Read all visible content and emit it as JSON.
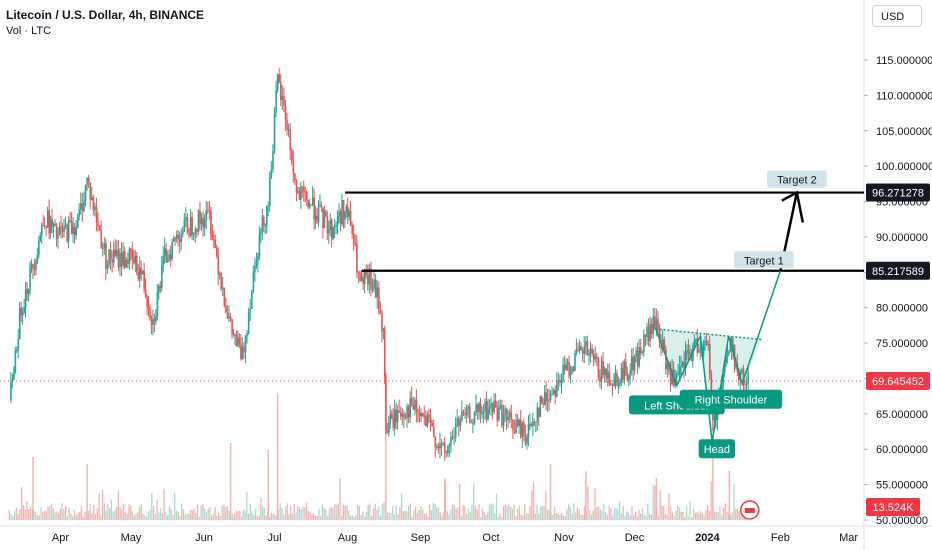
{
  "header": {
    "title": "Litecoin / U.S. Dollar, 4h, BINANCE",
    "volume_label": "Vol · LTC",
    "currency_button": "USD"
  },
  "colors": {
    "up": "#26a69a",
    "down": "#ef5350",
    "pattern": "#089981",
    "line": "#000000",
    "axis_text": "#131722",
    "price_dotted": "#f23645"
  },
  "chart_data": {
    "type": "candlestick",
    "symbol": "LTCUSD",
    "timeframe": "4h",
    "exchange": "BINANCE",
    "y_axis": {
      "ylim": [
        50,
        120
      ],
      "ticks": [
        "115.000000",
        "110.000000",
        "105.000000",
        "100.000000",
        "95.000000",
        "90.000000",
        "85.000000",
        "80.000000",
        "75.000000",
        "70.000000",
        "65.000000",
        "60.000000",
        "55.000000",
        "50.000000"
      ],
      "tick_values": [
        115,
        110,
        105,
        100,
        95,
        90,
        85,
        80,
        75,
        70,
        65,
        60,
        55,
        50
      ]
    },
    "x_axis": {
      "ticks": [
        "Apr",
        "May",
        "Jun",
        "Jul",
        "Aug",
        "Sep",
        "Oct",
        "Nov",
        "Dec",
        "2024",
        "Feb",
        "Mar"
      ],
      "tick_dates": [
        "2023-04-01",
        "2023-05-01",
        "2023-06-01",
        "2023-07-01",
        "2023-08-01",
        "2023-09-01",
        "2023-10-01",
        "2023-11-01",
        "2023-12-01",
        "2024-01-01",
        "2024-02-01",
        "2024-03-01"
      ],
      "range": [
        "2023-03-08",
        "2024-03-05"
      ]
    },
    "price_path": [
      {
        "date": "2023-03-10",
        "price": 67
      },
      {
        "date": "2023-03-15",
        "price": 80
      },
      {
        "date": "2023-03-20",
        "price": 86
      },
      {
        "date": "2023-03-25",
        "price": 93
      },
      {
        "date": "2023-03-30",
        "price": 90
      },
      {
        "date": "2023-04-08",
        "price": 92
      },
      {
        "date": "2023-04-12",
        "price": 98
      },
      {
        "date": "2023-04-20",
        "price": 87
      },
      {
        "date": "2023-04-30",
        "price": 87
      },
      {
        "date": "2023-05-05",
        "price": 85
      },
      {
        "date": "2023-05-10",
        "price": 78
      },
      {
        "date": "2023-05-15",
        "price": 87
      },
      {
        "date": "2023-05-22",
        "price": 91
      },
      {
        "date": "2023-05-28",
        "price": 92
      },
      {
        "date": "2023-06-03",
        "price": 93
      },
      {
        "date": "2023-06-08",
        "price": 84
      },
      {
        "date": "2023-06-12",
        "price": 77
      },
      {
        "date": "2023-06-17",
        "price": 73
      },
      {
        "date": "2023-06-23",
        "price": 88
      },
      {
        "date": "2023-06-28",
        "price": 95
      },
      {
        "date": "2023-07-02",
        "price": 112
      },
      {
        "date": "2023-07-06",
        "price": 106
      },
      {
        "date": "2023-07-10",
        "price": 96
      },
      {
        "date": "2023-07-15",
        "price": 95
      },
      {
        "date": "2023-07-20",
        "price": 93
      },
      {
        "date": "2023-07-25",
        "price": 91
      },
      {
        "date": "2023-07-30",
        "price": 94
      },
      {
        "date": "2023-08-02",
        "price": 92
      },
      {
        "date": "2023-08-06",
        "price": 83
      },
      {
        "date": "2023-08-10",
        "price": 84
      },
      {
        "date": "2023-08-14",
        "price": 81
      },
      {
        "date": "2023-08-16",
        "price": 76
      },
      {
        "date": "2023-08-17",
        "price": 63
      },
      {
        "date": "2023-08-22",
        "price": 65
      },
      {
        "date": "2023-08-28",
        "price": 66
      },
      {
        "date": "2023-09-05",
        "price": 63
      },
      {
        "date": "2023-09-11",
        "price": 59
      },
      {
        "date": "2023-09-17",
        "price": 64
      },
      {
        "date": "2023-09-25",
        "price": 65
      },
      {
        "date": "2023-10-02",
        "price": 66
      },
      {
        "date": "2023-10-08",
        "price": 64
      },
      {
        "date": "2023-10-16",
        "price": 62
      },
      {
        "date": "2023-10-21",
        "price": 66
      },
      {
        "date": "2023-10-26",
        "price": 68
      },
      {
        "date": "2023-11-01",
        "price": 71
      },
      {
        "date": "2023-11-06",
        "price": 73
      },
      {
        "date": "2023-11-10",
        "price": 74
      },
      {
        "date": "2023-11-16",
        "price": 71
      },
      {
        "date": "2023-11-22",
        "price": 70
      },
      {
        "date": "2023-11-27",
        "price": 71
      },
      {
        "date": "2023-12-02",
        "price": 73
      },
      {
        "date": "2023-12-06",
        "price": 76
      },
      {
        "date": "2023-12-10",
        "price": 78
      },
      {
        "date": "2023-12-14",
        "price": 72
      },
      {
        "date": "2023-12-18",
        "price": 69
      },
      {
        "date": "2023-12-23",
        "price": 73
      },
      {
        "date": "2023-12-28",
        "price": 75
      },
      {
        "date": "2024-01-01",
        "price": 74
      },
      {
        "date": "2024-01-03",
        "price": 64
      },
      {
        "date": "2024-01-05",
        "price": 66
      },
      {
        "date": "2024-01-08",
        "price": 72
      },
      {
        "date": "2024-01-11",
        "price": 75
      },
      {
        "date": "2024-01-14",
        "price": 70
      },
      {
        "date": "2024-01-18",
        "price": 69.6
      }
    ],
    "horizontal_lines": [
      {
        "label": "96.271278",
        "value": 96.271278,
        "start": "2023-07-31"
      },
      {
        "label": "85.217589",
        "value": 85.217589,
        "start": "2023-08-07"
      }
    ],
    "current_price": {
      "label": "69.645452",
      "value": 69.645452
    },
    "pattern": {
      "name": "inverse head and shoulders",
      "points": [
        {
          "date": "2023-12-10",
          "price": 77
        },
        {
          "date": "2023-12-19",
          "price": 69
        },
        {
          "date": "2023-12-29",
          "price": 76
        },
        {
          "date": "2024-01-03",
          "price": 61
        },
        {
          "date": "2024-01-10",
          "price": 76
        },
        {
          "date": "2024-01-16",
          "price": 69
        }
      ],
      "neckline": [
        {
          "date": "2023-12-10",
          "price": 77
        },
        {
          "date": "2024-01-24",
          "price": 75.5
        }
      ],
      "labels": [
        {
          "text": "Left Shoulder",
          "date": "2023-12-19",
          "price": 66.2
        },
        {
          "text": "Head",
          "date": "2024-01-05",
          "price": 60.0
        },
        {
          "text": "Right Shoulder",
          "date": "2024-01-11",
          "price": 67.0
        }
      ]
    },
    "projection": [
      {
        "date": "2024-01-16",
        "price": 69.5
      },
      {
        "date": "2024-02-01",
        "price": 85.217589
      },
      {
        "date": "2024-02-08",
        "price": 96.271278
      }
    ],
    "targets": [
      {
        "text": "Target 1",
        "date": "2024-01-25",
        "price": 86.7
      },
      {
        "text": "Target 2",
        "date": "2024-02-08",
        "price": 98.1
      }
    ],
    "volume": {
      "label": "13.524K",
      "spikes": [
        {
          "date": "2023-07-02",
          "height": 0.9
        },
        {
          "date": "2023-06-28",
          "height": 0.5
        },
        {
          "date": "2023-08-17",
          "height": 1.0
        },
        {
          "date": "2023-06-12",
          "height": 0.55
        },
        {
          "date": "2023-03-20",
          "height": 0.45
        },
        {
          "date": "2023-04-12",
          "height": 0.4
        },
        {
          "date": "2024-01-03",
          "height": 0.6
        },
        {
          "date": "2024-01-10",
          "height": 0.35
        },
        {
          "date": "2023-09-11",
          "height": 0.3
        },
        {
          "date": "2023-10-26",
          "height": 0.4
        },
        {
          "date": "2023-11-10",
          "height": 0.35
        },
        {
          "date": "2023-12-10",
          "height": 0.3
        }
      ]
    }
  }
}
